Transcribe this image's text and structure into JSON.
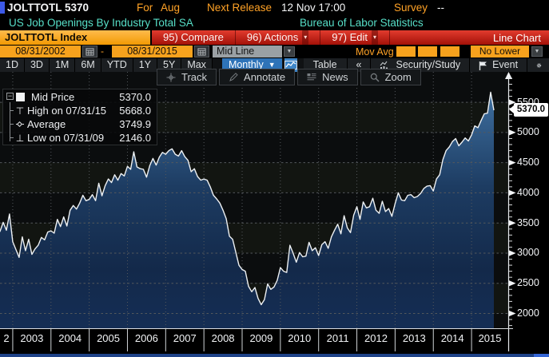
{
  "header": {
    "ticker": "JOLTTOTL",
    "value": "5370",
    "for_label": "For",
    "for_value": "Aug",
    "next_release_label": "Next Release",
    "next_release_value": "12 Nov 17:00",
    "survey_label": "Survey",
    "survey_value": "--",
    "description": "US Job Openings By Industry Total SA",
    "source": "Bureau of Labor Statistics"
  },
  "tab_bar": {
    "function_tab": "JOLTTOTL Index",
    "compare": "95) Compare",
    "actions": "96) Actions",
    "edit": "97) Edit",
    "chart_type": "Line Chart"
  },
  "controls": {
    "date_from": "08/31/2002",
    "dash": "-",
    "date_to": "08/31/2015",
    "line_type": "Mid Line",
    "mov_avg_label": "Mov Avg",
    "lower_chart": "No Lower Chart"
  },
  "toolbar": {
    "periods": [
      "1D",
      "3D",
      "1M",
      "6M",
      "YTD",
      "1Y",
      "5Y",
      "Max"
    ],
    "frequency": "Monthly",
    "table_label": "Table",
    "collapse": "«",
    "security_study": "Security/Study",
    "event": "Event"
  },
  "chart_toolbar": {
    "track": "Track",
    "annotate": "Annotate",
    "news": "News",
    "zoom": "Zoom"
  },
  "legend": {
    "rows": [
      {
        "label": "Mid Price",
        "value": "5370.0"
      },
      {
        "label": "High on 07/31/15",
        "value": "5668.0"
      },
      {
        "label": "Average",
        "value": "3749.9"
      },
      {
        "label": "Low on 07/31/09",
        "value": "2146.0"
      }
    ]
  },
  "price_tag": "5370.0",
  "colors": {
    "accent_orange": "#f7a21d",
    "amber_text": "#ffa226",
    "teal_text": "#57dfc8",
    "red_bar": "#c41f17",
    "selected_blue": "#2e73b8",
    "line": "#eef1f3",
    "fill_top": "#3e6f9f",
    "fill_bottom": "#142c52",
    "grid": "#565b5f",
    "bottom_strip": "#1e4288"
  },
  "chart_data": {
    "type": "area",
    "title": "US Job Openings By Industry Total SA (JOLTTOTL Index)",
    "frequency": "monthly",
    "x_start": "2002-08",
    "x_end": "2015-08",
    "x_labels": [
      "2",
      "2003",
      "2004",
      "2005",
      "2006",
      "2007",
      "2008",
      "2009",
      "2010",
      "2011",
      "2012",
      "2013",
      "2014",
      "2015"
    ],
    "y_ticks": [
      5500,
      5000,
      4500,
      4000,
      3500,
      3000,
      2500,
      2000
    ],
    "ylim": [
      1755,
      6005
    ],
    "grid": true,
    "legend_position": "top-left",
    "stats": {
      "last": 5370.0,
      "high": 5668.0,
      "high_date": "07/31/15",
      "average": 3749.9,
      "low": 2146.0,
      "low_date": "07/31/09"
    },
    "values": [
      3420,
      3360,
      3510,
      3380,
      3650,
      3190,
      3060,
      2930,
      3270,
      3040,
      3230,
      2980,
      3070,
      3130,
      3260,
      3220,
      3350,
      3370,
      3330,
      3560,
      3440,
      3600,
      3450,
      3710,
      3790,
      3730,
      3830,
      3960,
      3870,
      3890,
      3970,
      3870,
      4160,
      3950,
      4120,
      4230,
      4170,
      4300,
      4210,
      4320,
      4280,
      4440,
      4390,
      4680,
      4430,
      4400,
      4390,
      4260,
      4450,
      4570,
      4460,
      4590,
      4670,
      4640,
      4700,
      4730,
      4640,
      4610,
      4700,
      4600,
      4540,
      4350,
      4400,
      4270,
      4210,
      4230,
      4210,
      4100,
      3960,
      3900,
      3830,
      3710,
      3570,
      3280,
      3230,
      3020,
      2800,
      2730,
      2700,
      2450,
      2360,
      2430,
      2250,
      2146,
      2230,
      2490,
      2400,
      2440,
      2550,
      2760,
      2700,
      2680,
      3130,
      3000,
      2850,
      3010,
      2940,
      2950,
      3180,
      3040,
      3090,
      2960,
      3140,
      3190,
      3080,
      3270,
      3380,
      3480,
      3320,
      3620,
      3420,
      3340,
      3630,
      3770,
      3560,
      3850,
      3750,
      3770,
      3910,
      3710,
      3660,
      3860,
      3690,
      3740,
      3610,
      3820,
      4000,
      3880,
      3870,
      3960,
      3970,
      3920,
      3940,
      3990,
      4070,
      4110,
      4120,
      4030,
      4230,
      4300,
      4550,
      4700,
      4760,
      4850,
      4900,
      4780,
      4840,
      4910,
      4860,
      4960,
      5110,
      5080,
      5200,
      5310,
      5320,
      5668,
      5370
    ]
  }
}
